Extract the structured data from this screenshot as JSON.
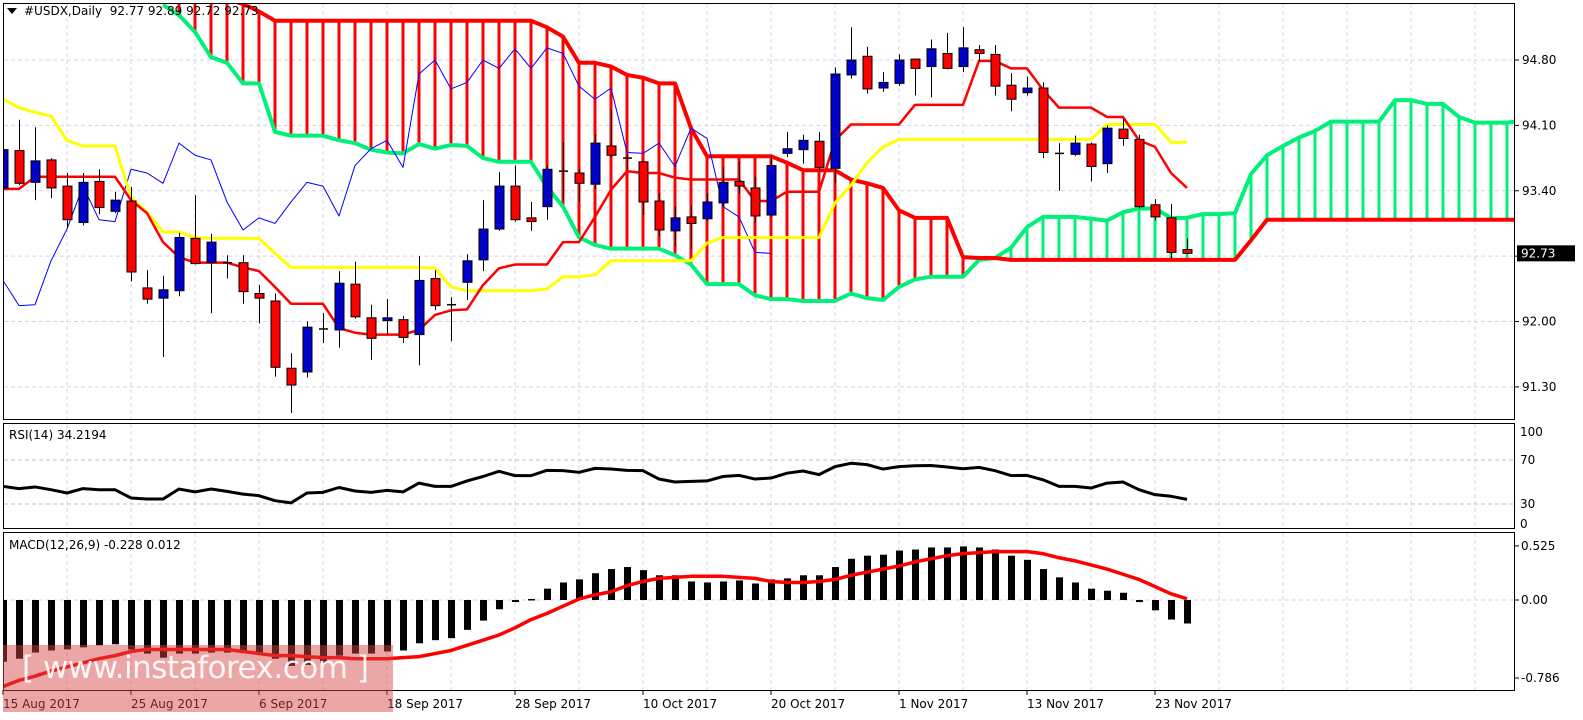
{
  "header": {
    "symbol_label": "#USDX,Daily",
    "ohlc": "92.77 92.89 92.72 92.73"
  },
  "watermark": "[ www.instaforex.com ]",
  "chart_data": {
    "type": "candlestick",
    "symbol": "#USDX",
    "timeframe": "Daily",
    "colors": {
      "bull": "#0000cc",
      "bear": "#ff0000",
      "tenkan": "#ff0000",
      "kijun": "#ffff00",
      "chikou": "#0000ff",
      "senkou_a": "#00f07a",
      "senkou_b": "#ff0000",
      "rsi": "#000000",
      "macd_hist": "#000000",
      "macd_signal": "#ff0000",
      "current_price_bg": "#000000"
    },
    "price_axis": {
      "ticks": [
        "94.80",
        "94.10",
        "93.40",
        "92.70",
        "92.00",
        "91.30"
      ],
      "labels": [
        "94.80",
        "94.10",
        "93.40",
        "92.00",
        "91.30"
      ],
      "range": [
        91.0,
        95.41
      ]
    },
    "current_price": "92.73",
    "x_tick_labels": [
      "15 Aug 2017",
      "25 Aug 2017",
      "6 Sep 2017",
      "18 Sep 2017",
      "28 Sep 2017",
      "10 Oct 2017",
      "20 Oct 2017",
      "1 Nov 2017",
      "13 Nov 2017",
      "23 Nov 2017"
    ],
    "candles_ohlc": [
      [
        93.43,
        94.14,
        93.35,
        93.84
      ],
      [
        93.83,
        94.16,
        93.46,
        93.48
      ],
      [
        93.49,
        94.08,
        93.3,
        93.72
      ],
      [
        93.73,
        93.75,
        93.32,
        93.43
      ],
      [
        93.45,
        93.59,
        93.0,
        93.09
      ],
      [
        93.06,
        93.59,
        93.03,
        93.49
      ],
      [
        93.5,
        93.63,
        93.15,
        93.22
      ],
      [
        93.18,
        93.39,
        93.16,
        93.3
      ],
      [
        93.29,
        93.44,
        92.43,
        92.53
      ],
      [
        92.36,
        92.55,
        92.19,
        92.24
      ],
      [
        92.25,
        92.49,
        91.62,
        92.34
      ],
      [
        92.33,
        92.95,
        92.27,
        92.9
      ],
      [
        92.89,
        93.35,
        92.61,
        92.62
      ],
      [
        92.63,
        92.94,
        92.09,
        92.85
      ],
      [
        92.63,
        92.71,
        92.46,
        92.62
      ],
      [
        92.63,
        92.71,
        92.19,
        92.32
      ],
      [
        92.3,
        92.39,
        91.98,
        92.25
      ],
      [
        92.22,
        92.3,
        91.41,
        91.51
      ],
      [
        91.5,
        91.66,
        91.02,
        91.32
      ],
      [
        91.46,
        92.0,
        91.4,
        91.94
      ],
      [
        91.91,
        92.09,
        91.77,
        91.92
      ],
      [
        91.91,
        92.54,
        91.72,
        92.41
      ],
      [
        92.4,
        92.64,
        92.03,
        92.05
      ],
      [
        92.04,
        92.18,
        91.59,
        91.82
      ],
      [
        92.01,
        92.24,
        91.86,
        92.04
      ],
      [
        92.02,
        92.06,
        91.77,
        91.83
      ],
      [
        91.86,
        92.7,
        91.53,
        92.44
      ],
      [
        92.46,
        92.55,
        92.12,
        92.17
      ],
      [
        92.18,
        92.26,
        91.79,
        92.18
      ],
      [
        92.42,
        92.72,
        92.23,
        92.65
      ],
      [
        92.66,
        93.3,
        92.54,
        92.99
      ],
      [
        92.99,
        93.6,
        92.97,
        93.45
      ],
      [
        93.45,
        93.67,
        93.07,
        93.09
      ],
      [
        93.11,
        93.28,
        92.97,
        93.07
      ],
      [
        93.23,
        93.67,
        93.09,
        93.63
      ],
      [
        93.61,
        93.92,
        93.3,
        93.59
      ],
      [
        93.59,
        93.63,
        93.28,
        93.48
      ],
      [
        93.47,
        94.0,
        93.42,
        93.91
      ],
      [
        93.88,
        94.27,
        93.76,
        93.78
      ],
      [
        93.75,
        93.79,
        93.63,
        93.73
      ],
      [
        93.71,
        93.71,
        93.14,
        93.28
      ],
      [
        93.29,
        93.37,
        92.91,
        92.98
      ],
      [
        92.97,
        93.23,
        92.81,
        93.11
      ],
      [
        93.12,
        93.24,
        92.78,
        93.05
      ],
      [
        93.1,
        93.37,
        93.08,
        93.28
      ],
      [
        93.27,
        93.65,
        93.23,
        93.49
      ],
      [
        93.5,
        93.71,
        93.37,
        93.45
      ],
      [
        93.43,
        93.55,
        93.06,
        93.13
      ],
      [
        93.14,
        93.78,
        93.12,
        93.67
      ],
      [
        93.8,
        94.03,
        93.76,
        93.85
      ],
      [
        93.84,
        94.0,
        93.69,
        93.94
      ],
      [
        93.93,
        94.03,
        93.61,
        93.65
      ],
      [
        93.64,
        94.72,
        93.48,
        94.65
      ],
      [
        94.64,
        95.15,
        94.6,
        94.8
      ],
      [
        94.84,
        94.94,
        94.44,
        94.49
      ],
      [
        94.5,
        94.67,
        94.46,
        94.56
      ],
      [
        94.55,
        94.86,
        94.52,
        94.8
      ],
      [
        94.81,
        94.81,
        94.42,
        94.71
      ],
      [
        94.73,
        95.02,
        94.4,
        94.92
      ],
      [
        94.87,
        95.09,
        94.7,
        94.71
      ],
      [
        94.73,
        95.15,
        94.67,
        94.93
      ],
      [
        94.91,
        94.96,
        94.79,
        94.87
      ],
      [
        94.86,
        94.96,
        94.42,
        94.52
      ],
      [
        94.53,
        94.66,
        94.25,
        94.38
      ],
      [
        94.45,
        94.62,
        94.42,
        94.5
      ],
      [
        94.5,
        94.56,
        93.75,
        93.81
      ],
      [
        93.8,
        93.91,
        93.4,
        93.8
      ],
      [
        93.79,
        93.99,
        93.77,
        93.91
      ],
      [
        93.9,
        93.92,
        93.5,
        93.66
      ],
      [
        93.69,
        94.1,
        93.59,
        94.07
      ],
      [
        94.06,
        94.17,
        93.88,
        93.96
      ],
      [
        93.95,
        94.0,
        93.21,
        93.23
      ],
      [
        93.25,
        93.31,
        93.08,
        93.12
      ],
      [
        93.11,
        93.26,
        92.67,
        92.74
      ],
      [
        92.77,
        92.89,
        92.72,
        92.73
      ]
    ],
    "ichimoku": {
      "chikou_shift": 26,
      "tenkan": [
        93.42,
        93.42,
        93.55,
        93.55,
        93.55,
        93.55,
        93.55,
        93.55,
        93.3,
        93.16,
        92.85,
        92.69,
        92.63,
        92.63,
        92.63,
        92.58,
        92.54,
        92.37,
        92.19,
        92.19,
        92.19,
        91.93,
        91.88,
        91.86,
        91.86,
        91.86,
        91.91,
        92.07,
        92.12,
        92.13,
        92.39,
        92.57,
        92.61,
        92.61,
        92.61,
        92.85,
        92.85,
        93.12,
        93.41,
        93.61,
        93.59,
        93.59,
        93.54,
        93.52,
        93.52,
        93.52,
        93.52,
        93.29,
        93.29,
        93.39,
        93.39,
        93.39,
        93.94,
        94.11,
        94.11,
        94.11,
        94.11,
        94.32,
        94.32,
        94.32,
        94.32,
        94.79,
        94.79,
        94.71,
        94.71,
        94.48,
        94.29,
        94.29,
        94.29,
        94.19,
        94.19,
        93.94,
        93.87,
        93.59,
        93.43
      ],
      "kijun": [
        94.38,
        94.29,
        94.24,
        94.2,
        93.94,
        93.88,
        93.88,
        93.88,
        93.33,
        93.17,
        92.96,
        92.96,
        92.9,
        92.89,
        92.89,
        92.89,
        92.89,
        92.73,
        92.58,
        92.58,
        92.58,
        92.58,
        92.58,
        92.58,
        92.58,
        92.58,
        92.58,
        92.57,
        92.37,
        92.33,
        92.33,
        92.33,
        92.33,
        92.33,
        92.35,
        92.48,
        92.48,
        92.5,
        92.65,
        92.65,
        92.65,
        92.65,
        92.65,
        92.65,
        92.84,
        92.9,
        92.9,
        92.9,
        92.9,
        92.9,
        92.9,
        92.9,
        93.27,
        93.46,
        93.7,
        93.87,
        93.95,
        93.95,
        93.95,
        93.95,
        93.95,
        93.95,
        93.95,
        93.95,
        93.95,
        93.95,
        93.95,
        93.95,
        93.95,
        94.11,
        94.11,
        94.11,
        94.11,
        93.92,
        93.92
      ],
      "senkou_a": [
        null,
        null,
        null,
        null,
        null,
        null,
        null,
        null,
        null,
        null,
        95.39,
        95.28,
        95.1,
        94.83,
        94.77,
        94.55,
        94.55,
        94.03,
        93.99,
        93.99,
        93.99,
        93.94,
        93.91,
        93.84,
        93.81,
        93.8,
        93.9,
        93.85,
        93.89,
        93.88,
        93.75,
        93.71,
        93.71,
        93.71,
        93.44,
        93.23,
        92.9,
        92.82,
        92.78,
        92.78,
        92.78,
        92.78,
        92.71,
        92.61,
        92.4,
        92.4,
        92.4,
        92.28,
        92.24,
        92.24,
        92.22,
        92.22,
        92.22,
        92.3,
        92.25,
        92.23,
        92.37,
        92.45,
        92.48,
        92.48,
        92.48,
        92.66,
        92.68,
        92.79,
        93.01,
        93.12,
        93.12,
        93.12,
        93.1,
        93.08,
        93.17,
        93.21,
        93.21,
        93.11,
        93.11,
        93.15,
        93.15,
        93.16,
        93.58,
        93.78,
        93.88,
        93.97,
        94.04,
        94.14,
        94.14,
        94.14,
        94.14,
        94.37,
        94.37,
        94.33,
        94.33,
        94.19,
        94.13,
        94.13,
        94.13,
        94.15
      ],
      "senkou_b": [
        null,
        null,
        null,
        null,
        null,
        null,
        null,
        null,
        null,
        null,
        null,
        95.45,
        95.45,
        95.45,
        95.45,
        95.4,
        95.32,
        95.22,
        95.22,
        95.22,
        95.22,
        95.22,
        95.22,
        95.22,
        95.22,
        95.22,
        95.22,
        95.22,
        95.22,
        95.22,
        95.22,
        95.22,
        95.22,
        95.22,
        95.15,
        95.05,
        94.77,
        94.77,
        94.73,
        94.64,
        94.61,
        94.55,
        94.55,
        94.07,
        93.77,
        93.77,
        93.77,
        93.77,
        93.77,
        93.7,
        93.62,
        93.62,
        93.62,
        93.52,
        93.48,
        93.43,
        93.19,
        93.11,
        93.11,
        93.11,
        92.69,
        92.68,
        92.68,
        92.66,
        92.66,
        92.66,
        92.66,
        92.66,
        92.66,
        92.66,
        92.66,
        92.66,
        92.66,
        92.66,
        92.66,
        92.66,
        92.66,
        92.66,
        92.87,
        93.09,
        93.09,
        93.09,
        93.09,
        93.09,
        93.09,
        93.09,
        93.09,
        93.09,
        93.09,
        93.09,
        93.09,
        93.09,
        93.09,
        93.09,
        93.09,
        93.09
      ]
    },
    "rsi": {
      "label": "RSI(14) 34.2194",
      "ticks": [
        "100",
        "70",
        "30",
        "0"
      ],
      "levels": [
        70,
        30
      ],
      "values": [
        46,
        44,
        45.5,
        43,
        40,
        44,
        43,
        43,
        35.5,
        34.5,
        34.5,
        43.6,
        41,
        43.6,
        41.5,
        39,
        37.6,
        33,
        31,
        40,
        40.6,
        45,
        41.8,
        40.6,
        42.4,
        41,
        49,
        46,
        46,
        51,
        55,
        59.7,
        55.8,
        55.8,
        60.6,
        60.3,
        58.8,
        62.4,
        61.8,
        60.6,
        60.3,
        52.7,
        50,
        50.6,
        51,
        55,
        56,
        52.7,
        53.6,
        58,
        60,
        56.7,
        64,
        67,
        65.8,
        61.8,
        64,
        64.8,
        65,
        63.6,
        62,
        63.3,
        60.3,
        55.8,
        56,
        52,
        46,
        46,
        44.5,
        49,
        50,
        43,
        38.5,
        37,
        34.22
      ]
    },
    "macd": {
      "label": "MACD(12,26,9) -0.228 0.012",
      "ticks": [
        "0.525",
        "0.00",
        "-0.786"
      ],
      "histogram": [
        -0.6,
        -0.57,
        -0.51,
        -0.49,
        -0.48,
        -0.46,
        -0.44,
        -0.43,
        -0.48,
        -0.52,
        -0.56,
        -0.52,
        -0.52,
        -0.51,
        -0.51,
        -0.51,
        -0.52,
        -0.57,
        -0.64,
        -0.63,
        -0.61,
        -0.54,
        -0.52,
        -0.52,
        -0.5,
        -0.49,
        -0.42,
        -0.39,
        -0.37,
        -0.29,
        -0.2,
        -0.09,
        -0.02,
        0.01,
        0.11,
        0.17,
        0.2,
        0.26,
        0.3,
        0.32,
        0.29,
        0.24,
        0.24,
        0.18,
        0.17,
        0.18,
        0.19,
        0.16,
        0.2,
        0.21,
        0.24,
        0.24,
        0.32,
        0.4,
        0.43,
        0.44,
        0.48,
        0.49,
        0.51,
        0.51,
        0.52,
        0.51,
        0.49,
        0.43,
        0.39,
        0.3,
        0.22,
        0.17,
        0.11,
        0.09,
        0.07,
        -0.02,
        -0.1,
        -0.19,
        -0.228
      ],
      "signal": [
        -0.84,
        -0.78,
        -0.74,
        -0.69,
        -0.65,
        -0.61,
        -0.57,
        -0.54,
        -0.5,
        -0.48,
        -0.48,
        -0.48,
        -0.48,
        -0.48,
        -0.48,
        -0.5,
        -0.52,
        -0.54,
        -0.54,
        -0.55,
        -0.56,
        -0.56,
        -0.57,
        -0.57,
        -0.57,
        -0.56,
        -0.55,
        -0.52,
        -0.49,
        -0.44,
        -0.39,
        -0.34,
        -0.27,
        -0.19,
        -0.13,
        -0.06,
        0.01,
        0.05,
        0.08,
        0.14,
        0.18,
        0.21,
        0.22,
        0.23,
        0.23,
        0.23,
        0.22,
        0.21,
        0.18,
        0.17,
        0.17,
        0.18,
        0.2,
        0.24,
        0.27,
        0.3,
        0.33,
        0.37,
        0.4,
        0.43,
        0.45,
        0.46,
        0.47,
        0.47,
        0.47,
        0.45,
        0.41,
        0.38,
        0.34,
        0.3,
        0.25,
        0.2,
        0.13,
        0.06,
        0.012
      ]
    }
  }
}
